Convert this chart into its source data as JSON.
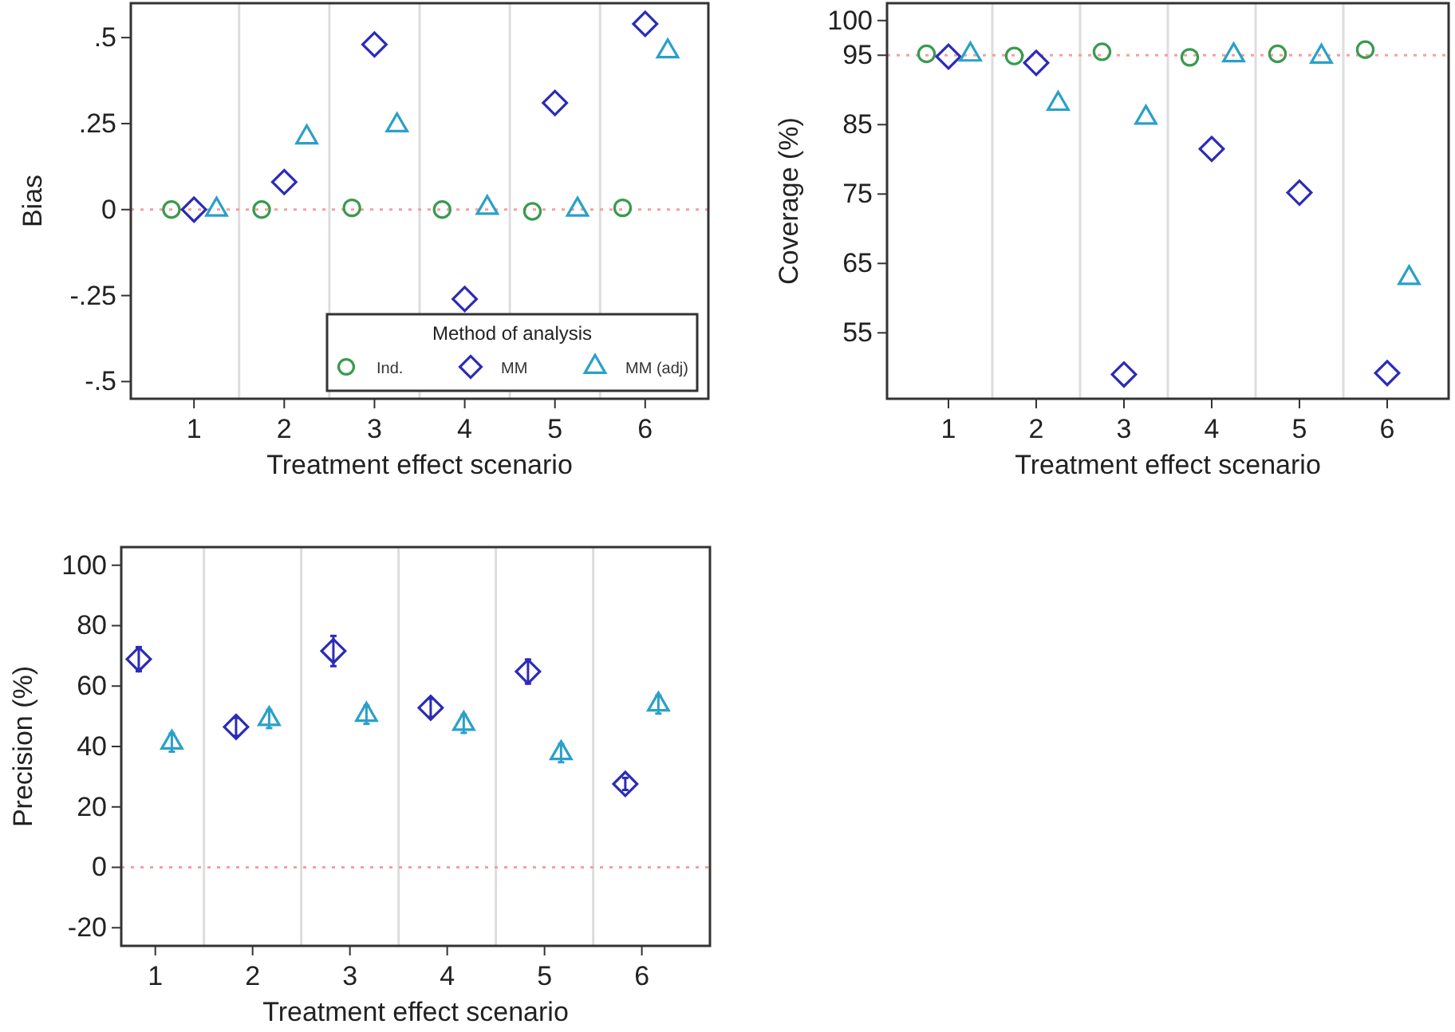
{
  "chart_data": [
    {
      "type": "scatter",
      "ylabel": "Bias",
      "xlabel": "Treatment effect scenario",
      "xlim": [
        0.3,
        6.7
      ],
      "xticks": [
        1,
        2,
        3,
        4,
        5,
        6
      ],
      "ylim": [
        -0.55,
        0.6
      ],
      "yticks": [
        {
          "value": 0.5,
          "label": ".5"
        },
        {
          "value": 0.25,
          "label": ".25"
        },
        0,
        {
          "value": -0.25,
          "label": "-.25"
        },
        {
          "value": -0.5,
          "label": "-.5"
        }
      ],
      "legend": "bottom right",
      "legend_title": "Method of analysis",
      "grid": false,
      "ref_lines": [
        {
          "axis": "x",
          "value": 1.5,
          "color": "#dddddd"
        },
        {
          "axis": "x",
          "value": 2.5,
          "color": "#dddddd"
        },
        {
          "axis": "x",
          "value": 3.5,
          "color": "#dddddd"
        },
        {
          "axis": "x",
          "value": 4.5,
          "color": "#dddddd"
        },
        {
          "axis": "x",
          "value": 5.5,
          "color": "#dddddd"
        },
        {
          "axis": "y",
          "value": 0,
          "color": "#f4a0a0",
          "line_style": "dotted"
        }
      ],
      "series": [
        {
          "name": "Ind.",
          "color": "#3a9a4f",
          "marker": "circle",
          "x": [
            0.75,
            1.75,
            2.75,
            3.75,
            4.75,
            5.75
          ],
          "values": [
            0,
            0,
            0.005,
            0,
            -0.005,
            0.005
          ]
        },
        {
          "name": "MM",
          "color": "#2b2bb8",
          "marker": "diamond",
          "x": [
            1,
            2,
            3,
            4,
            5,
            6
          ],
          "values": [
            0,
            0.08,
            0.48,
            -0.26,
            0.31,
            0.54
          ]
        },
        {
          "name": "MM (adj)",
          "color": "#2aa0c8",
          "marker": "triangle",
          "x": [
            1.25,
            2.25,
            3.25,
            4.25,
            5.25,
            6.25
          ],
          "values": [
            0,
            0.21,
            0.245,
            0.005,
            0,
            0.46
          ]
        }
      ]
    },
    {
      "type": "scatter",
      "ylabel": "Coverage (%)",
      "xlabel": "Treatment effect scenario",
      "xlim": [
        0.3,
        6.7
      ],
      "xticks": [
        1,
        2,
        3,
        4,
        5,
        6
      ],
      "ylim": [
        45.5,
        102.5
      ],
      "yticks": [
        100,
        95,
        85,
        75,
        65,
        55
      ],
      "legend": false,
      "grid": false,
      "ref_lines": [
        {
          "axis": "x",
          "value": 1.5,
          "color": "#dddddd"
        },
        {
          "axis": "x",
          "value": 2.5,
          "color": "#dddddd"
        },
        {
          "axis": "x",
          "value": 3.5,
          "color": "#dddddd"
        },
        {
          "axis": "x",
          "value": 4.5,
          "color": "#dddddd"
        },
        {
          "axis": "x",
          "value": 5.5,
          "color": "#dddddd"
        },
        {
          "axis": "y",
          "value": 95,
          "color": "#f4a0a0",
          "line_style": "dotted"
        }
      ],
      "series": [
        {
          "color": "#3a9a4f",
          "marker": "circle",
          "x": [
            0.75,
            1.75,
            2.75,
            3.75,
            4.75,
            5.75
          ],
          "values": [
            95.2,
            94.9,
            95.5,
            94.7,
            95.2,
            95.8
          ]
        },
        {
          "color": "#2b2bb8",
          "marker": "diamond",
          "x": [
            1,
            2,
            3,
            4,
            5,
            6
          ],
          "values": [
            94.8,
            93.9,
            49,
            81.5,
            75.2,
            49.2
          ]
        },
        {
          "color": "#2aa0c8",
          "marker": "triangle",
          "x": [
            1.25,
            2.25,
            3.25,
            4.25,
            5.25,
            6.25
          ],
          "values": [
            95.1,
            88,
            86,
            95,
            94.8,
            62.9
          ]
        }
      ]
    },
    {
      "type": "scatter",
      "ylabel": "Precision (%)",
      "xlabel": "Treatment effect scenario",
      "xlim": [
        0.65,
        6.7
      ],
      "xticks": [
        1,
        2,
        3,
        4,
        5,
        6
      ],
      "ylim": [
        -26,
        106
      ],
      "yticks": [
        100,
        80,
        60,
        40,
        20,
        0,
        -20
      ],
      "legend": false,
      "grid": false,
      "ref_lines": [
        {
          "axis": "x",
          "value": 1.5,
          "color": "#dddddd"
        },
        {
          "axis": "x",
          "value": 2.5,
          "color": "#dddddd"
        },
        {
          "axis": "x",
          "value": 3.5,
          "color": "#dddddd"
        },
        {
          "axis": "x",
          "value": 4.5,
          "color": "#dddddd"
        },
        {
          "axis": "x",
          "value": 5.5,
          "color": "#dddddd"
        },
        {
          "axis": "y",
          "value": 0,
          "color": "#f4a0a0",
          "line_style": "dotted"
        }
      ],
      "series": [
        {
          "color": "#2b2bb8",
          "marker": "diamond",
          "x": [
            0.83,
            1.83,
            2.83,
            3.83,
            4.83,
            5.83
          ],
          "values": [
            68.9,
            46.5,
            71.6,
            52.8,
            64.8,
            27.6
          ],
          "errors": [
            4,
            3,
            5,
            3,
            4,
            2
          ]
        },
        {
          "color": "#2aa0c8",
          "marker": "triangle",
          "x": [
            1.17,
            2.17,
            3.17,
            4.17,
            5.17,
            6.17
          ],
          "values": [
            41.3,
            49.1,
            50.5,
            47.5,
            37.8,
            53.9
          ],
          "errors": [
            3,
            3,
            3,
            3,
            3,
            3
          ]
        }
      ]
    }
  ]
}
